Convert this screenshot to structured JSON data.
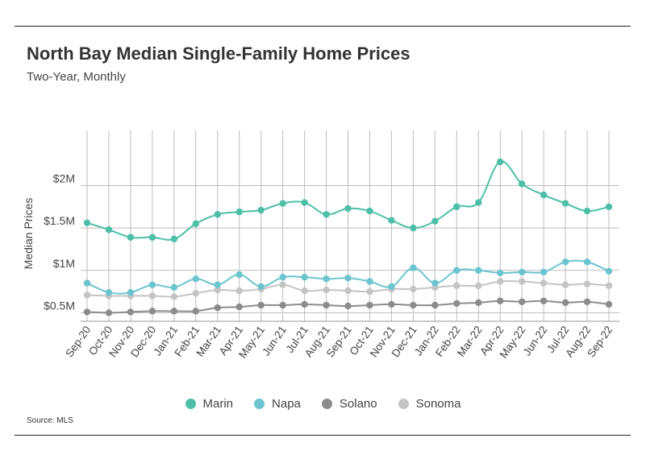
{
  "header": {
    "title": "North Bay Median Single-Family Home Prices",
    "subtitle": "Two-Year, Monthly"
  },
  "footer": {
    "source": "Source:  MLS"
  },
  "colors": {
    "Marin": "#4dbfa8",
    "Napa": "#6cc4cf",
    "Solano": "#8c8c8c",
    "Sonoma": "#c4c4c4",
    "grid": "#bdbdbd"
  },
  "chart_data": {
    "type": "line",
    "ylabel": "Median Prices",
    "xlabel": "",
    "ylim": [
      400000,
      2650000
    ],
    "yticks": [
      {
        "value": 500000,
        "label": "$0.5M"
      },
      {
        "value": 1000000,
        "label": "$1M"
      },
      {
        "value": 1500000,
        "label": "$1.5M"
      },
      {
        "value": 2000000,
        "label": "$2M"
      }
    ],
    "grid": true,
    "legend": "bottom",
    "categories": [
      "Sep-20",
      "Oct-20",
      "Nov-20",
      "Dec-20",
      "Jan-21",
      "Feb-21",
      "Mar-21",
      "Apr-21",
      "May-21",
      "Jun-21",
      "Jul-21",
      "Aug-21",
      "Sep-21",
      "Oct-21",
      "Nov-21",
      "Dec-21",
      "Jan-22",
      "Feb-22",
      "Mar-22",
      "Apr-22",
      "May-22",
      "Jun-22",
      "Jul-22",
      "Aug-22",
      "Sep-22"
    ],
    "series": [
      {
        "name": "Marin",
        "values": [
          1560000,
          1480000,
          1390000,
          1390000,
          1370000,
          1550000,
          1660000,
          1690000,
          1710000,
          1790000,
          1800000,
          1660000,
          1730000,
          1700000,
          1590000,
          1500000,
          1580000,
          1750000,
          1800000,
          2280000,
          2020000,
          1890000,
          1790000,
          1700000,
          1750000
        ]
      },
      {
        "name": "Napa",
        "values": [
          850000,
          740000,
          740000,
          830000,
          800000,
          900000,
          830000,
          950000,
          810000,
          920000,
          920000,
          900000,
          910000,
          870000,
          810000,
          1030000,
          850000,
          1000000,
          1000000,
          970000,
          980000,
          980000,
          1100000,
          1100000,
          990000
        ]
      },
      {
        "name": "Solano",
        "values": [
          510000,
          500000,
          510000,
          520000,
          520000,
          520000,
          560000,
          570000,
          590000,
          590000,
          600000,
          590000,
          580000,
          590000,
          600000,
          590000,
          590000,
          610000,
          620000,
          640000,
          630000,
          640000,
          620000,
          630000,
          600000
        ]
      },
      {
        "name": "Sonoma",
        "values": [
          710000,
          700000,
          700000,
          700000,
          690000,
          730000,
          770000,
          760000,
          780000,
          830000,
          760000,
          770000,
          760000,
          750000,
          780000,
          780000,
          800000,
          820000,
          820000,
          870000,
          870000,
          850000,
          830000,
          840000,
          820000
        ]
      }
    ]
  }
}
